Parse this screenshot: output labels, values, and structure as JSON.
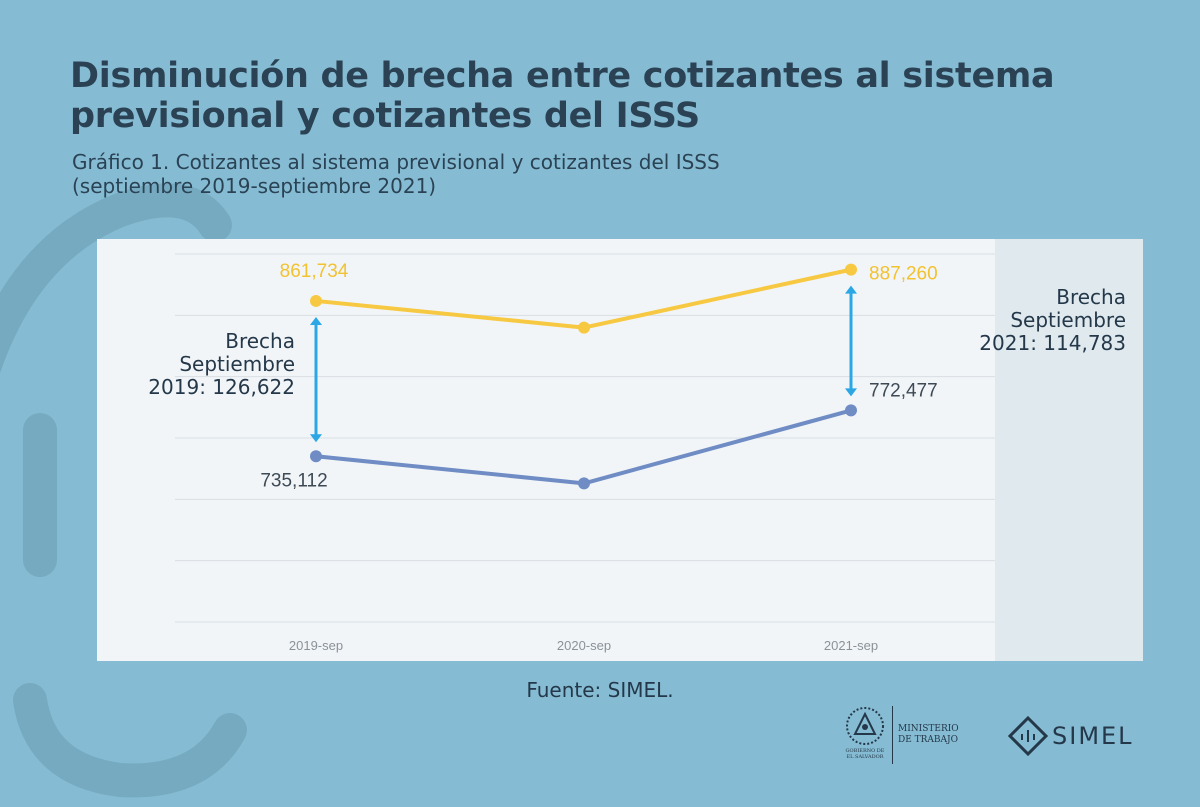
{
  "header": {
    "title": "Disminución de brecha entre cotizantes al sistema previsional y cotizantes del ISSS",
    "subtitle_line1": "Gráfico 1. Cotizantes al sistema previsional y cotizantes del ISSS",
    "subtitle_line2": "(septiembre 2019-septiembre 2021)"
  },
  "chart_data": {
    "type": "line",
    "categories": [
      "2019-sep",
      "2020-sep",
      "2021-sep"
    ],
    "ylim": [
      600000,
      900000
    ],
    "grid": true,
    "series": [
      {
        "color": "#f7c841",
        "values": [
          861734,
          840000,
          887260
        ],
        "labels": [
          "861,734",
          "",
          "887,260"
        ]
      },
      {
        "color": "#6f8dc4",
        "values": [
          735112,
          713000,
          772477
        ],
        "labels": [
          "735,112",
          "",
          "772,477"
        ]
      }
    ],
    "annotations": [
      {
        "line1": "Brecha",
        "line2": "Septiembre",
        "line3": "2019: 126,622"
      },
      {
        "line1": "Brecha",
        "line2": "Septiembre",
        "line3": "2021: 114,783"
      }
    ],
    "arrow_color": "#2aa7e4"
  },
  "footer": {
    "source": "Fuente: SIMEL.",
    "gov_line1": "GOBIERNO DE",
    "gov_line2": "EL SALVADOR",
    "ministry_line1": "MINISTERIO",
    "ministry_line2": "DE TRABAJO",
    "brand": "SIMEL"
  }
}
